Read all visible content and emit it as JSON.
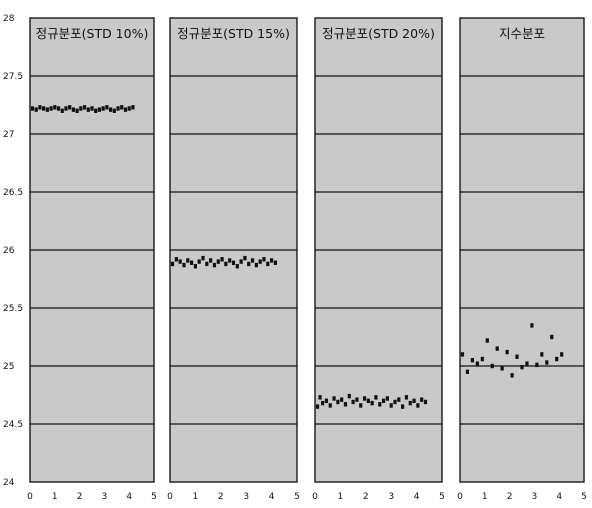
{
  "chart_data": {
    "type": "scatter",
    "ylim": [
      24,
      28
    ],
    "yticks": [
      {
        "value": 28,
        "label": "28"
      },
      {
        "value": 27.5,
        "label": "27.5"
      },
      {
        "value": 27,
        "label": "27"
      },
      {
        "value": 26.5,
        "label": "26.5"
      },
      {
        "value": 26,
        "label": "26"
      },
      {
        "value": 25.5,
        "label": "25.5"
      },
      {
        "value": 25,
        "label": "25"
      },
      {
        "value": 24.5,
        "label": "24.5"
      },
      {
        "value": 24,
        "label": "24"
      }
    ],
    "xlim": [
      0,
      5
    ],
    "xticks": [
      "0",
      "1",
      "2",
      "3",
      "4",
      "5"
    ],
    "grid": true,
    "panels": [
      {
        "title": "정규분포(STD 10%)",
        "points": [
          [
            0.1,
            27.22
          ],
          [
            0.25,
            27.21
          ],
          [
            0.4,
            27.23
          ],
          [
            0.55,
            27.22
          ],
          [
            0.7,
            27.21
          ],
          [
            0.85,
            27.22
          ],
          [
            1.0,
            27.23
          ],
          [
            1.15,
            27.22
          ],
          [
            1.3,
            27.2
          ],
          [
            1.45,
            27.22
          ],
          [
            1.6,
            27.23
          ],
          [
            1.75,
            27.21
          ],
          [
            1.9,
            27.2
          ],
          [
            2.05,
            27.22
          ],
          [
            2.2,
            27.23
          ],
          [
            2.35,
            27.21
          ],
          [
            2.5,
            27.22
          ],
          [
            2.65,
            27.2
          ],
          [
            2.8,
            27.21
          ],
          [
            2.95,
            27.22
          ],
          [
            3.1,
            27.23
          ],
          [
            3.25,
            27.21
          ],
          [
            3.4,
            27.2
          ],
          [
            3.55,
            27.22
          ],
          [
            3.7,
            27.23
          ],
          [
            3.85,
            27.21
          ],
          [
            4.0,
            27.22
          ],
          [
            4.15,
            27.23
          ]
        ]
      },
      {
        "title": "정규분포(STD 15%)",
        "points": [
          [
            0.1,
            25.88
          ],
          [
            0.25,
            25.92
          ],
          [
            0.4,
            25.9
          ],
          [
            0.55,
            25.87
          ],
          [
            0.7,
            25.91
          ],
          [
            0.85,
            25.89
          ],
          [
            1.0,
            25.86
          ],
          [
            1.15,
            25.9
          ],
          [
            1.3,
            25.93
          ],
          [
            1.45,
            25.88
          ],
          [
            1.6,
            25.91
          ],
          [
            1.75,
            25.87
          ],
          [
            1.9,
            25.9
          ],
          [
            2.05,
            25.92
          ],
          [
            2.2,
            25.88
          ],
          [
            2.35,
            25.91
          ],
          [
            2.5,
            25.89
          ],
          [
            2.65,
            25.86
          ],
          [
            2.8,
            25.9
          ],
          [
            2.95,
            25.93
          ],
          [
            3.1,
            25.88
          ],
          [
            3.25,
            25.91
          ],
          [
            3.4,
            25.87
          ],
          [
            3.55,
            25.9
          ],
          [
            3.7,
            25.92
          ],
          [
            3.85,
            25.88
          ],
          [
            4.0,
            25.91
          ],
          [
            4.15,
            25.89
          ]
        ]
      },
      {
        "title": "정규분포(STD 20%)",
        "points": [
          [
            0.1,
            24.65
          ],
          [
            0.2,
            24.73
          ],
          [
            0.3,
            24.68
          ],
          [
            0.45,
            24.7
          ],
          [
            0.6,
            24.66
          ],
          [
            0.75,
            24.72
          ],
          [
            0.9,
            24.69
          ],
          [
            1.05,
            24.71
          ],
          [
            1.2,
            24.67
          ],
          [
            1.35,
            24.74
          ],
          [
            1.5,
            24.69
          ],
          [
            1.65,
            24.71
          ],
          [
            1.8,
            24.66
          ],
          [
            1.95,
            24.72
          ],
          [
            2.1,
            24.7
          ],
          [
            2.25,
            24.68
          ],
          [
            2.4,
            24.73
          ],
          [
            2.55,
            24.67
          ],
          [
            2.7,
            24.7
          ],
          [
            2.85,
            24.72
          ],
          [
            3.0,
            24.66
          ],
          [
            3.15,
            24.69
          ],
          [
            3.3,
            24.71
          ],
          [
            3.45,
            24.65
          ],
          [
            3.6,
            24.73
          ],
          [
            3.75,
            24.68
          ],
          [
            3.9,
            24.7
          ],
          [
            4.05,
            24.66
          ],
          [
            4.2,
            24.71
          ],
          [
            4.35,
            24.69
          ]
        ]
      },
      {
        "title": "지수분포",
        "points": [
          [
            0.1,
            25.1
          ],
          [
            0.3,
            24.95
          ],
          [
            0.5,
            25.05
          ],
          [
            0.7,
            25.02
          ],
          [
            0.9,
            25.06
          ],
          [
            1.1,
            25.22
          ],
          [
            1.3,
            25.0
          ],
          [
            1.5,
            25.15
          ],
          [
            1.7,
            24.98
          ],
          [
            1.9,
            25.12
          ],
          [
            2.1,
            24.92
          ],
          [
            2.3,
            25.08
          ],
          [
            2.5,
            24.99
          ],
          [
            2.7,
            25.02
          ],
          [
            2.9,
            25.35
          ],
          [
            3.1,
            25.01
          ],
          [
            3.3,
            25.1
          ],
          [
            3.5,
            25.03
          ],
          [
            3.7,
            25.25
          ],
          [
            3.9,
            25.06
          ],
          [
            4.1,
            25.1
          ]
        ]
      }
    ]
  }
}
